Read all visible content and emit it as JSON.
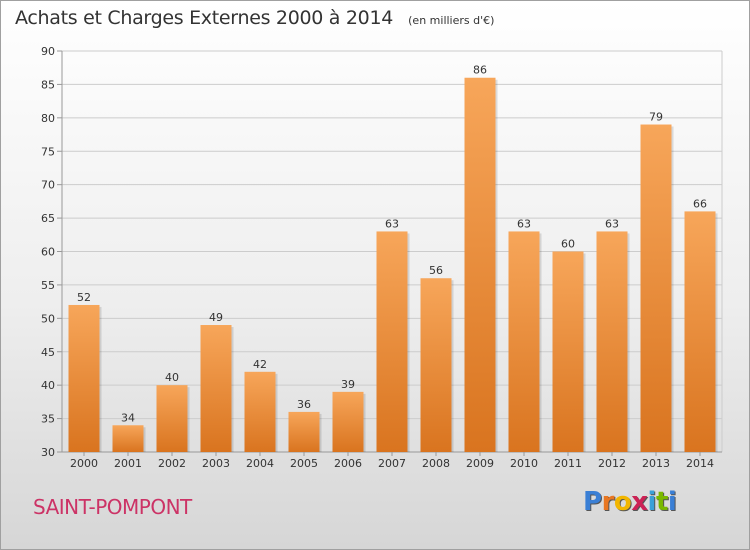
{
  "header": {
    "title": "Achats et Charges Externes 2000 à 2014",
    "unit": "(en milliers d'€)"
  },
  "footer": {
    "commune": "SAINT-POMPONT",
    "brand_letters": [
      "P",
      "r",
      "o",
      "x",
      "i",
      "t",
      "i"
    ],
    "brand_colors": [
      "#3a7fd5",
      "#e87722",
      "#f2b600",
      "#cc2255",
      "#3aa0d8",
      "#7ab800",
      "#3a7fd5"
    ]
  },
  "colors": {
    "bar_light": "#f7a65a",
    "bar_dark": "#d9741f",
    "grid": "#cccccc",
    "axis": "#999999",
    "text": "#333333"
  },
  "chart_data": {
    "type": "bar",
    "title": "Achats et Charges Externes 2000 à 2014",
    "categories": [
      "2000",
      "2001",
      "2002",
      "2003",
      "2004",
      "2005",
      "2006",
      "2007",
      "2008",
      "2009",
      "2010",
      "2011",
      "2012",
      "2013",
      "2014"
    ],
    "values": [
      52,
      34,
      40,
      49,
      42,
      36,
      39,
      63,
      56,
      86,
      63,
      60,
      63,
      79,
      66
    ],
    "data_labels": [
      "52",
      "34",
      "40",
      "49",
      "42",
      "36",
      "39",
      "63",
      "56",
      "86",
      "63",
      "60",
      "63",
      "79",
      "66"
    ],
    "ylim": [
      30,
      90
    ],
    "yticks": [
      30,
      35,
      40,
      45,
      50,
      55,
      60,
      65,
      70,
      75,
      80,
      85,
      90
    ],
    "ytick_labels": [
      "30",
      "35",
      "40",
      "45",
      "50",
      "55",
      "60",
      "65",
      "70",
      "75",
      "80",
      "85",
      "90"
    ],
    "grid": true,
    "xlabel": "",
    "ylabel": ""
  }
}
